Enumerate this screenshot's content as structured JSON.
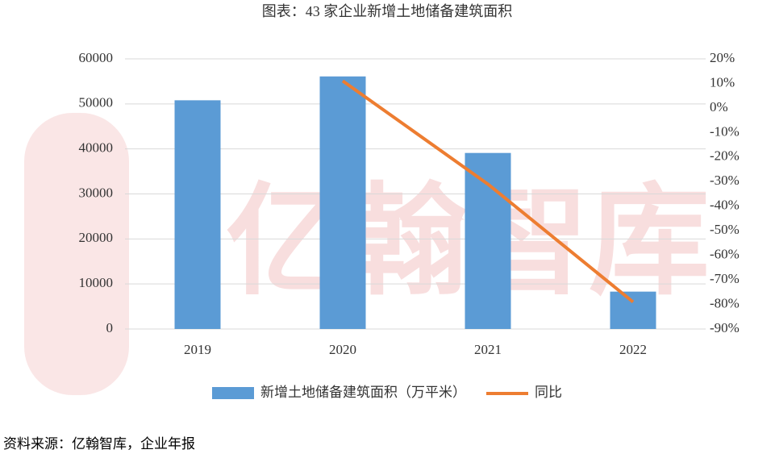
{
  "chart_data": {
    "type": "bar",
    "title": "图表：43 家企业新增土地储备建筑面积",
    "watermark": "亿翰智库",
    "categories": [
      "2019",
      "2020",
      "2021",
      "2022"
    ],
    "series": [
      {
        "name": "新增土地储备建筑面积（万平米）",
        "type": "bar",
        "color": "#5b9bd5",
        "values": [
          50800,
          56100,
          39100,
          8300
        ]
      },
      {
        "name": "同比",
        "type": "line",
        "axis": "y2",
        "color": "#ed7d31",
        "values": [
          null,
          11,
          -31,
          -79
        ]
      }
    ],
    "ylim": [
      0,
      60000
    ],
    "yticks": [
      0,
      10000,
      20000,
      30000,
      40000,
      50000,
      60000
    ],
    "y2lim": [
      -90,
      20
    ],
    "y2ticks": [
      {
        "value": -90,
        "label": "-90%"
      },
      {
        "value": -80,
        "label": "-80%"
      },
      {
        "value": -70,
        "label": "-70%"
      },
      {
        "value": -60,
        "label": "-60%"
      },
      {
        "value": -50,
        "label": "-50%"
      },
      {
        "value": -40,
        "label": "-40%"
      },
      {
        "value": -30,
        "label": "-30%"
      },
      {
        "value": -20,
        "label": "-20%"
      },
      {
        "value": -10,
        "label": "-10%"
      },
      {
        "value": 0,
        "label": "0%"
      },
      {
        "value": 10,
        "label": "10%"
      },
      {
        "value": 20,
        "label": "20%"
      }
    ],
    "grid": true,
    "source": "资料来源：亿翰智库，企业年报"
  }
}
